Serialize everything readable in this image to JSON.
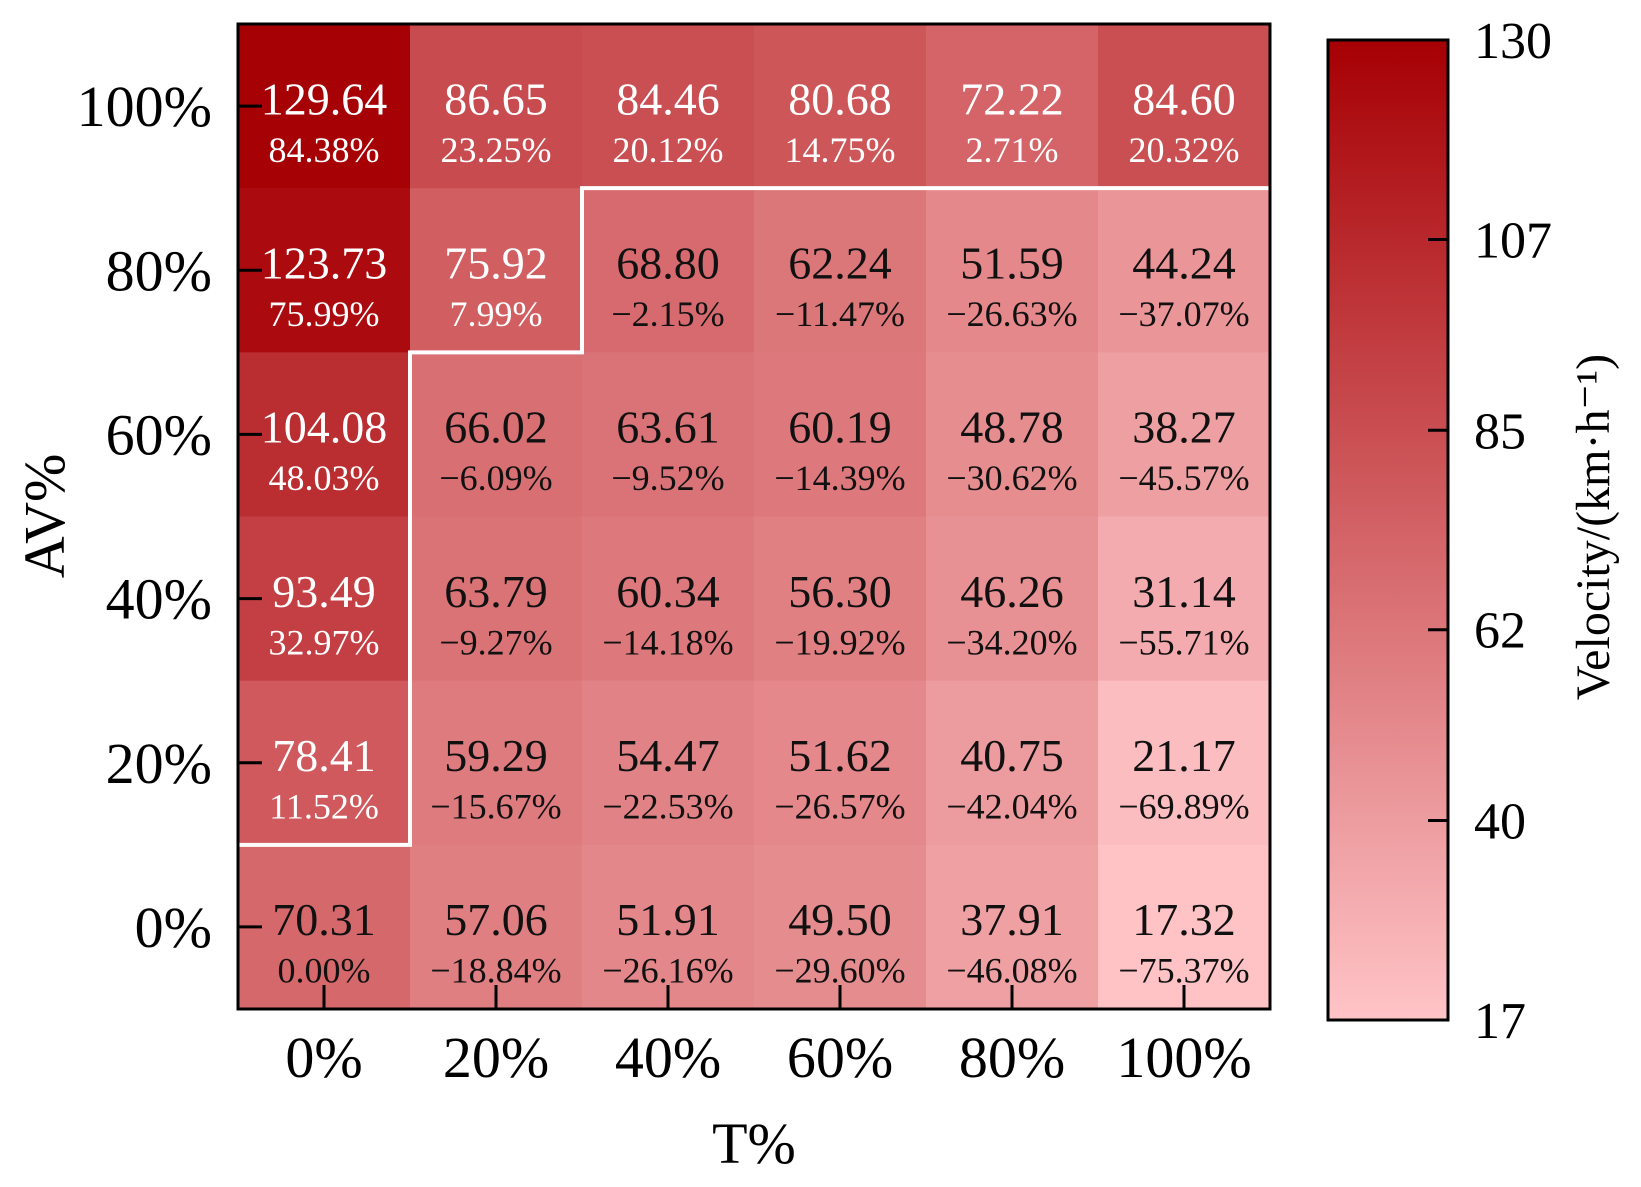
{
  "chart_data": {
    "type": "heatmap",
    "title": "",
    "xlabel": "T%",
    "ylabel": "AV%",
    "x_categories": [
      "0%",
      "20%",
      "40%",
      "60%",
      "80%",
      "100%"
    ],
    "y_categories": [
      "100%",
      "80%",
      "60%",
      "40%",
      "20%",
      "0%"
    ],
    "cells": [
      [
        {
          "value": "129.64",
          "pct": "84.38%"
        },
        {
          "value": "86.65",
          "pct": "23.25%"
        },
        {
          "value": "84.46",
          "pct": "20.12%"
        },
        {
          "value": "80.68",
          "pct": "14.75%"
        },
        {
          "value": "72.22",
          "pct": "2.71%"
        },
        {
          "value": "84.60",
          "pct": "20.32%"
        }
      ],
      [
        {
          "value": "123.73",
          "pct": "75.99%"
        },
        {
          "value": "75.92",
          "pct": "7.99%"
        },
        {
          "value": "68.80",
          "pct": "−2.15%"
        },
        {
          "value": "62.24",
          "pct": "−11.47%"
        },
        {
          "value": "51.59",
          "pct": "−26.63%"
        },
        {
          "value": "44.24",
          "pct": "−37.07%"
        }
      ],
      [
        {
          "value": "104.08",
          "pct": "48.03%"
        },
        {
          "value": "66.02",
          "pct": "−6.09%"
        },
        {
          "value": "63.61",
          "pct": "−9.52%"
        },
        {
          "value": "60.19",
          "pct": "−14.39%"
        },
        {
          "value": "48.78",
          "pct": "−30.62%"
        },
        {
          "value": "38.27",
          "pct": "−45.57%"
        }
      ],
      [
        {
          "value": "93.49",
          "pct": "32.97%"
        },
        {
          "value": "63.79",
          "pct": "−9.27%"
        },
        {
          "value": "60.34",
          "pct": "−14.18%"
        },
        {
          "value": "56.30",
          "pct": "−19.92%"
        },
        {
          "value": "46.26",
          "pct": "−34.20%"
        },
        {
          "value": "31.14",
          "pct": "−55.71%"
        }
      ],
      [
        {
          "value": "78.41",
          "pct": "11.52%"
        },
        {
          "value": "59.29",
          "pct": "−15.67%"
        },
        {
          "value": "54.47",
          "pct": "−22.53%"
        },
        {
          "value": "51.62",
          "pct": "−26.57%"
        },
        {
          "value": "40.75",
          "pct": "−42.04%"
        },
        {
          "value": "21.17",
          "pct": "−69.89%"
        }
      ],
      [
        {
          "value": "70.31",
          "pct": "0.00%"
        },
        {
          "value": "57.06",
          "pct": "−18.84%"
        },
        {
          "value": "51.91",
          "pct": "−26.16%"
        },
        {
          "value": "49.50",
          "pct": "−29.60%"
        },
        {
          "value": "37.91",
          "pct": "−46.08%"
        },
        {
          "value": "17.32",
          "pct": "−75.37%"
        }
      ]
    ],
    "white_text_cells": [
      [
        0,
        0
      ],
      [
        0,
        1
      ],
      [
        0,
        2
      ],
      [
        0,
        3
      ],
      [
        0,
        4
      ],
      [
        0,
        5
      ],
      [
        1,
        0
      ],
      [
        1,
        1
      ],
      [
        2,
        0
      ],
      [
        3,
        0
      ],
      [
        4,
        0
      ]
    ],
    "boundary_description": "white staircase line separating cells above baseline velocity (70.31) from those below",
    "colorbar": {
      "label": "Velocity/(km·h⁻¹)",
      "ticks": [
        "130",
        "107",
        "85",
        "62",
        "40",
        "17"
      ],
      "range": [
        17,
        130
      ],
      "color_low": "#ffc4c7",
      "color_high": "#a60004"
    },
    "grid": false
  }
}
